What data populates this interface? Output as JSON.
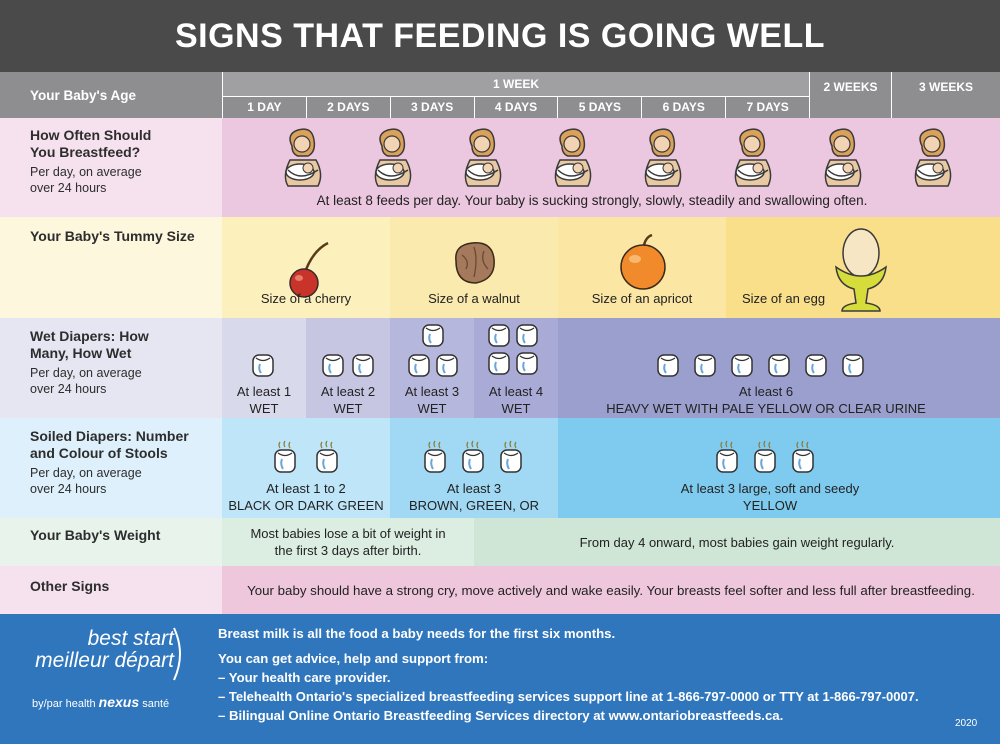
{
  "title": "SIGNS THAT FEEDING IS GOING WELL",
  "age": {
    "label": "Your Baby's Age",
    "week1": "1 WEEK",
    "days": [
      "1 DAY",
      "2 DAYS",
      "3 DAYS",
      "4 DAYS",
      "5 DAYS",
      "6 DAYS",
      "7 DAYS"
    ],
    "week2": "2 WEEKS",
    "week3": "3 WEEKS"
  },
  "breastfeed": {
    "title": "How Often Should You Breastfeed?",
    "sub": "Per day, on average over 24 hours",
    "text": "At least 8 feeds per day. Your baby is sucking strongly, slowly, steadily and swallowing often."
  },
  "tummy": {
    "title": "Your Baby's Tummy Size",
    "items": [
      "Size of a cherry",
      "Size of a walnut",
      "Size of an apricot",
      "Size of an egg"
    ]
  },
  "wet": {
    "title": "Wet Diapers: How Many, How Wet",
    "sub": "Per day, on average over 24 hours",
    "cells": [
      {
        "line1": "At least 1",
        "line2": "WET"
      },
      {
        "line1": "At least 2",
        "line2": "WET"
      },
      {
        "line1": "At least 3",
        "line2": "WET"
      },
      {
        "line1": "At least 4",
        "line2": "WET"
      },
      {
        "line1": "At least 6",
        "line2": "HEAVY WET WITH PALE YELLOW OR CLEAR URINE"
      }
    ]
  },
  "soiled": {
    "title": "Soiled Diapers: Number and Colour of Stools",
    "sub": "Per day, on average over 24 hours",
    "cells": [
      {
        "line1": "At least 1 to 2",
        "line2": "BLACK OR DARK GREEN"
      },
      {
        "line1": "At least 3",
        "line2": "BROWN, GREEN, OR YELLOW"
      },
      {
        "line1": "At least 3 large, soft and seedy",
        "line2": "YELLOW"
      }
    ]
  },
  "weight": {
    "title": "Your Baby's Weight",
    "left": "Most babies lose a bit of weight in the first 3 days after birth.",
    "right": "From day 4 onward, most babies gain weight regularly."
  },
  "other": {
    "title": "Other Signs",
    "text": "Your baby should have a strong cry, move actively and wake easily. Your breasts feel softer and less full after breastfeeding."
  },
  "footer": {
    "logo_line1": "best start",
    "logo_line2": "meilleur départ",
    "logo_by": "by/par health",
    "logo_nexus": "nexus",
    "logo_sante": "santé",
    "lines": [
      "Breast milk is all the food a baby needs for the first six months.",
      "You can get advice, help and support from:",
      "– Your health care provider.",
      "– Telehealth Ontario's specialized breastfeeding services support line at 1-866-797-0000 or TTY at 1-866-797-0007.",
      "– Bilingual Online Ontario Breastfeeding Services directory at www.ontariobreastfeeds.ca."
    ],
    "year": "2020"
  },
  "colors": {
    "header": "#4a4a4b",
    "age_row": "#8e8e90",
    "feed": "#ecc7e0",
    "tummy": "#fbeeb2",
    "wet": "#9b9fcd",
    "soiled": "#7fcbef",
    "weight": "#cfe6d6",
    "other": "#eec7dd",
    "footer": "#2f76bd"
  }
}
